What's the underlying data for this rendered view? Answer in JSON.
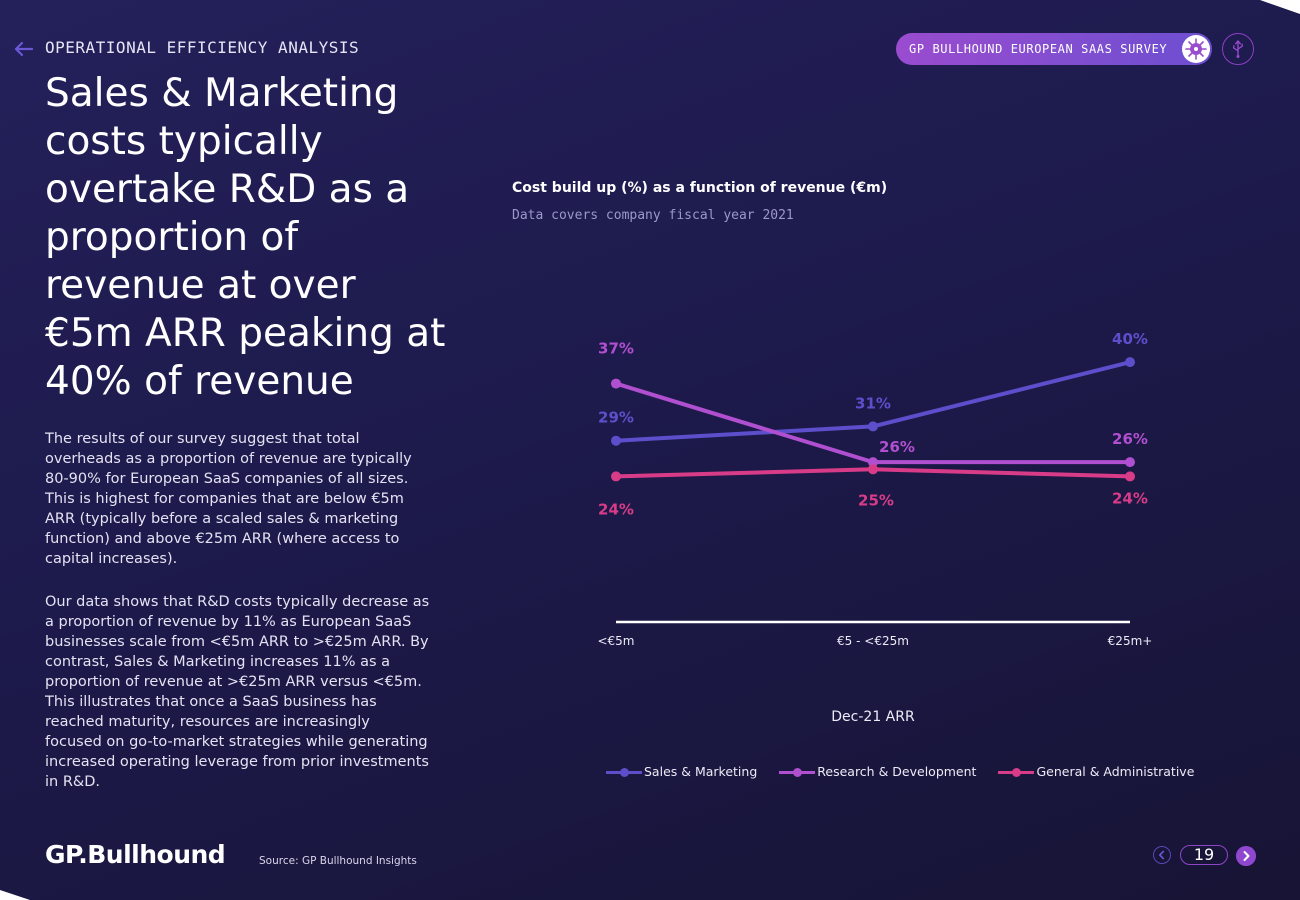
{
  "header": {
    "section": "OPERATIONAL EFFICIENCY ANALYSIS",
    "survey_label": "GP BULLHOUND EUROPEAN SAAS SURVEY"
  },
  "main": {
    "headline": "Sales & Marketing costs typically overtake R&D as a proportion of revenue at over €5m ARR peaking at 40% of revenue",
    "paragraphs": [
      "The results of our survey suggest that total overheads as a proportion of revenue are typically 80-90% for European SaaS companies of all sizes. This is highest for companies that are below €5m ARR (typically before a scaled sales & marketing function) and above €25m ARR (where access to capital increases).",
      "Our data shows that R&D costs typically decrease as a proportion of revenue by 11% as European SaaS businesses scale from <€5m ARR to >€25m ARR. By contrast, Sales & Marketing increases 11% as a proportion of revenue at >€25m ARR versus <€5m. This illustrates that once a SaaS business has reached maturity, resources are increasingly focused on go-to-market strategies while generating increased operating leverage from prior investments in R&D."
    ]
  },
  "chart_data": {
    "type": "line",
    "title": "Cost build up (%) as a function of revenue (€m)",
    "subtitle": "Data covers company fiscal year 2021",
    "categories": [
      "<€5m",
      "€5 - <€25m",
      "€25m+"
    ],
    "xlabel": "Dec-21 ARR",
    "ylabel": "",
    "ylim": [
      20,
      41
    ],
    "grid": false,
    "legend_position": "bottom",
    "series": [
      {
        "name": "Sales & Marketing",
        "values": [
          29,
          31,
          40
        ],
        "labels": [
          "29%",
          "31%",
          "40%"
        ],
        "color": "#5d4fcb"
      },
      {
        "name": "Research & Development",
        "values": [
          37,
          26,
          26
        ],
        "labels": [
          "37%",
          "26%",
          "26%"
        ],
        "color": "#b04fcf"
      },
      {
        "name": "General & Administrative",
        "values": [
          24,
          25,
          24
        ],
        "labels": [
          "24%",
          "25%",
          "24%"
        ],
        "color": "#d83c88"
      }
    ]
  },
  "footer": {
    "logo": "GP.Bullhound",
    "source": "Source: GP Bullhound Insights",
    "page": "19"
  },
  "icons": {
    "back": "arrow-left-icon",
    "survey_badge": "virus-icon",
    "usb": "usb-icon",
    "prev": "chevron-left-icon",
    "next": "chevron-right-icon"
  },
  "colors": {
    "accent": "#8f47d0",
    "background": "#1d1a4c"
  }
}
